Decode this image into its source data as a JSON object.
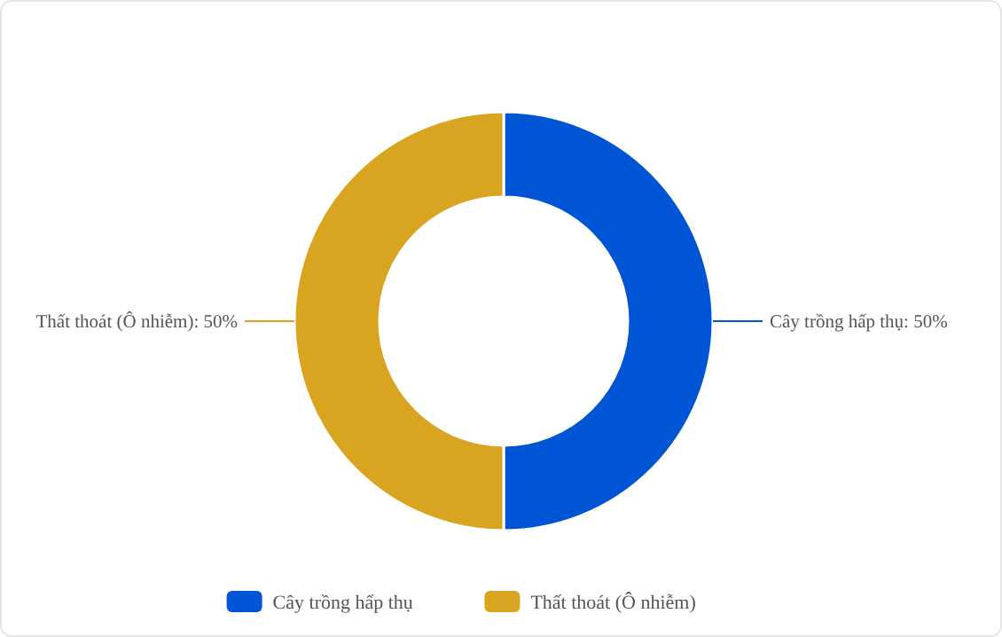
{
  "chart_data": {
    "type": "donut",
    "categories": [
      "Cây trồng hấp thụ",
      "Thất thoát (Ô nhiễm)"
    ],
    "values": [
      50,
      50
    ],
    "colors": [
      "#0055d4",
      "#d9a520"
    ],
    "value_labels": [
      "Cây trồng hấp thụ: 50%",
      "Thất thoát (Ô nhiễm): 50%"
    ],
    "legend": "bottom"
  }
}
